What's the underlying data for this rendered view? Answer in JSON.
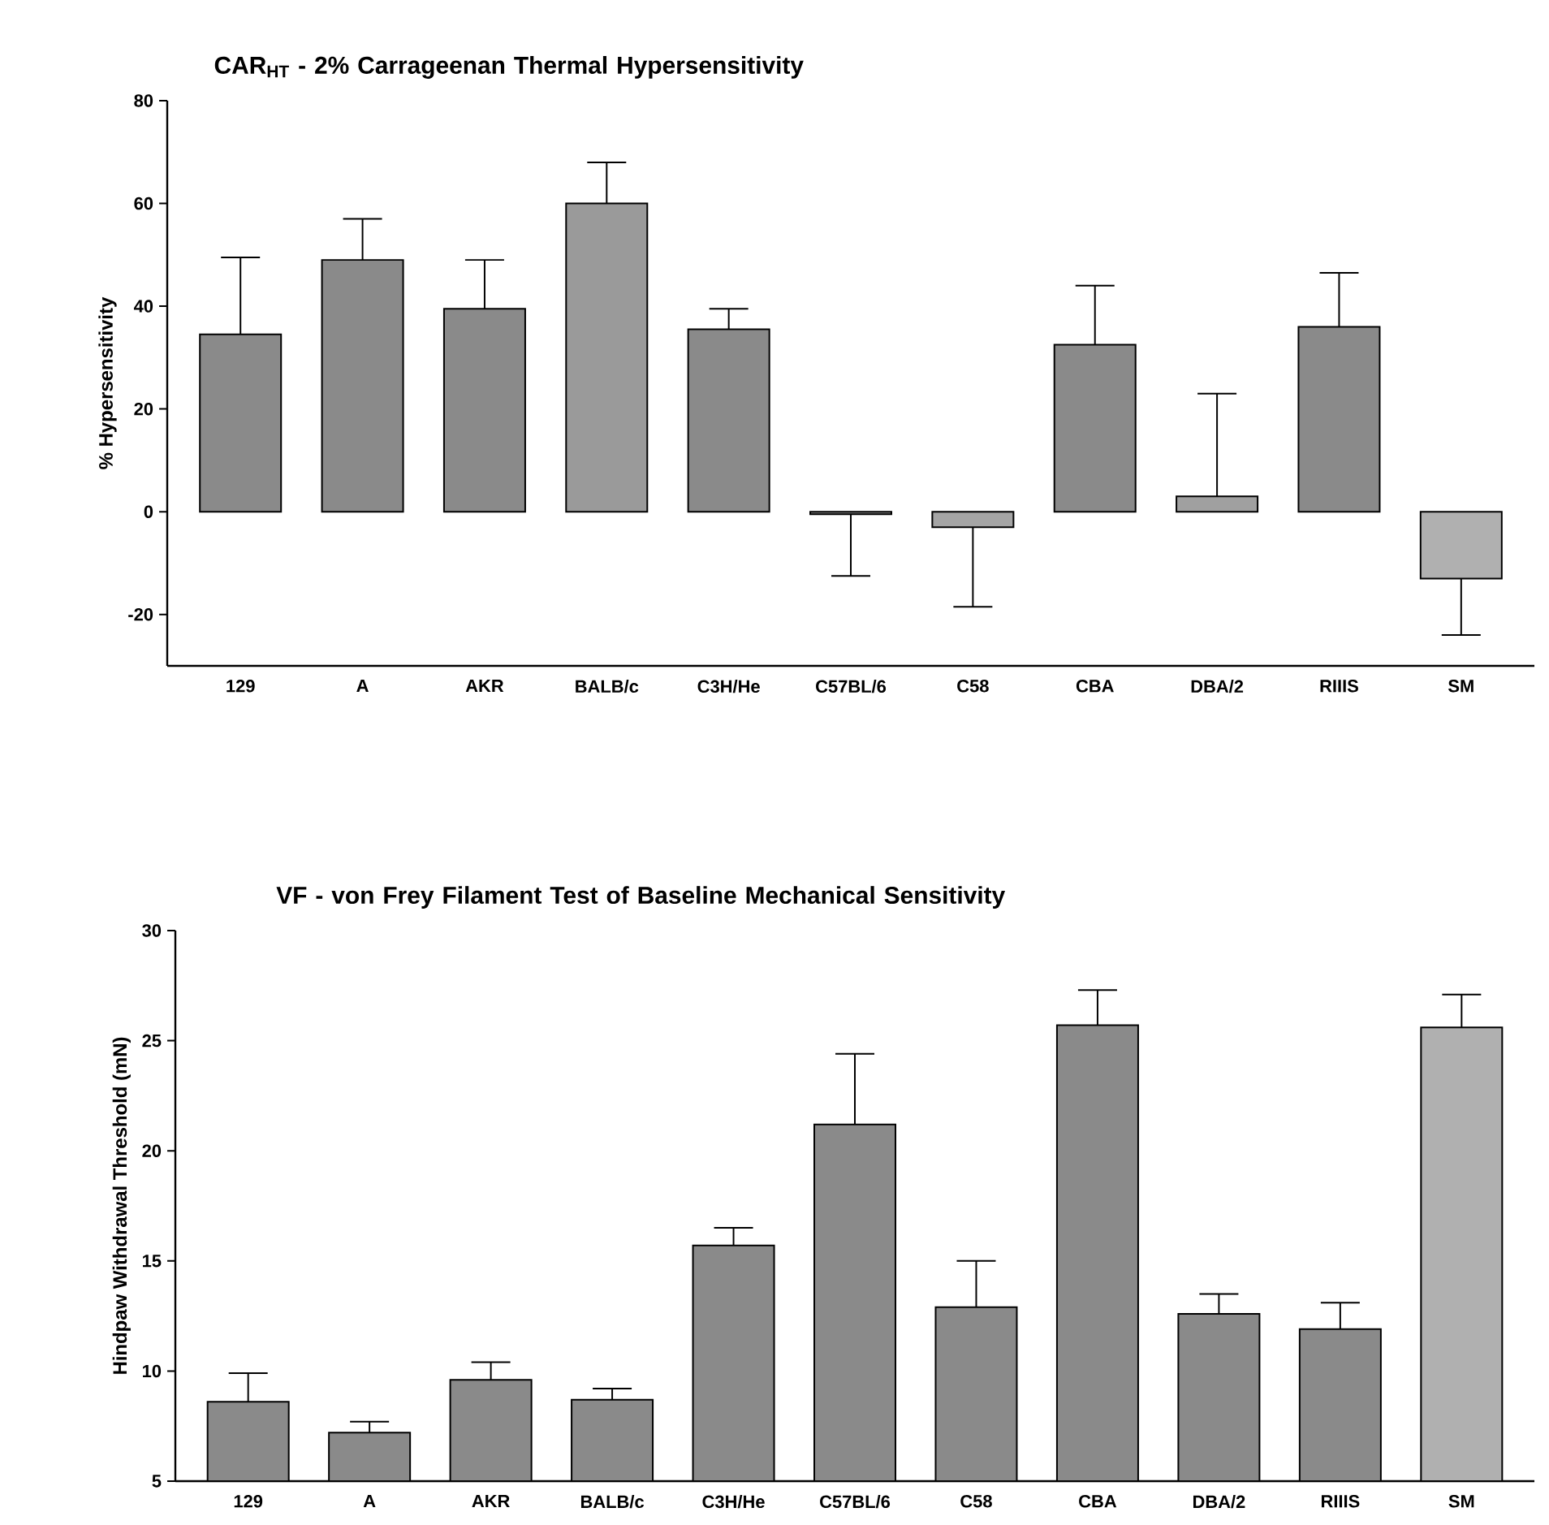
{
  "chart_data": [
    {
      "type": "bar",
      "title": "CAR$_{HT}$ - 2% Carrageenan Thermal Hypersensitivity",
      "ylabel": "% Hypersensitivity",
      "categories": [
        "129",
        "A",
        "AKR",
        "BALB/c",
        "C3H/He",
        "C57BL/6",
        "C58",
        "CBA",
        "DBA/2",
        "RIIIS",
        "SM"
      ],
      "values": [
        34.5,
        49,
        39.5,
        60,
        35.5,
        -0.5,
        -3,
        32.5,
        3,
        36,
        -13
      ],
      "errors": [
        [
          34.5,
          49.5
        ],
        [
          49,
          57
        ],
        [
          39.5,
          49
        ],
        [
          60,
          68
        ],
        [
          35.5,
          39.5
        ],
        [
          -12.5,
          -0.5
        ],
        [
          -18.5,
          -3
        ],
        [
          32.5,
          44
        ],
        [
          3,
          23
        ],
        [
          36,
          46.5
        ],
        [
          -24,
          -13
        ]
      ],
      "colors": [
        "#8a8a8a",
        "#8a8a8a",
        "#8a8a8a",
        "#9a9a9a",
        "#8a8a8a",
        "#8a8a8a",
        "#a5a5a5",
        "#8a8a8a",
        "#a0a0a0",
        "#8a8a8a",
        "#b0b0b0"
      ],
      "ylim": [
        -30,
        80
      ],
      "yticks": [
        -20,
        0,
        20,
        40,
        60,
        80
      ],
      "grid": false
    },
    {
      "type": "bar",
      "title": "VF - von Frey Filament Test of Baseline Mechanical Sensitivity",
      "ylabel": "Hindpaw Withdrawal Threshold (mN)",
      "categories": [
        "129",
        "A",
        "AKR",
        "BALB/c",
        "C3H/He",
        "C57BL/6",
        "C58",
        "CBA",
        "DBA/2",
        "RIIIS",
        "SM"
      ],
      "values": [
        8.6,
        7.2,
        9.6,
        8.7,
        15.7,
        21.2,
        12.9,
        25.7,
        12.6,
        11.9,
        25.6
      ],
      "errors": [
        [
          8.6,
          9.9
        ],
        [
          7.2,
          7.7
        ],
        [
          9.6,
          10.4
        ],
        [
          8.7,
          9.2
        ],
        [
          15.7,
          16.5
        ],
        [
          21.2,
          24.4
        ],
        [
          12.9,
          15.0
        ],
        [
          25.7,
          27.3
        ],
        [
          12.6,
          13.5
        ],
        [
          11.9,
          13.1
        ],
        [
          25.6,
          27.1
        ]
      ],
      "colors": [
        "#8a8a8a",
        "#8a8a8a",
        "#8a8a8a",
        "#8a8a8a",
        "#8a8a8a",
        "#8a8a8a",
        "#8a8a8a",
        "#8a8a8a",
        "#8a8a8a",
        "#8a8a8a",
        "#b0b0b0"
      ],
      "ylim": [
        5,
        30
      ],
      "yticks": [
        5,
        10,
        15,
        20,
        25,
        30
      ],
      "grid": false
    }
  ]
}
